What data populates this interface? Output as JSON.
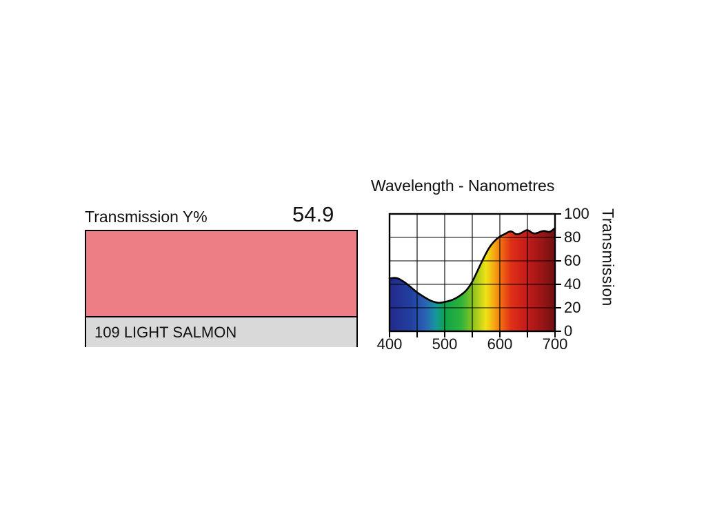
{
  "swatch": {
    "transmission_label": "Transmission Y%",
    "transmission_value": "54.9",
    "name_label": "109 LIGHT SALMON",
    "fill_color": "#ee7e85",
    "strip_color": "#d9d9da"
  },
  "chart_data": {
    "type": "area",
    "title": "Wavelength - Nanometres",
    "ylabel": "Transmission",
    "xlabel": "",
    "xlim": [
      400,
      700
    ],
    "ylim": [
      0,
      100
    ],
    "grid": true,
    "grid_step_x_nm": 50,
    "grid_step_y": 20,
    "legend": "none",
    "x_tick_labels": [
      "400",
      "500",
      "600",
      "700"
    ],
    "y_tick_labels": [
      "100",
      "80",
      "60",
      "40",
      "20",
      "0"
    ],
    "x": [
      400,
      410,
      420,
      430,
      440,
      450,
      460,
      470,
      480,
      490,
      500,
      510,
      520,
      530,
      540,
      550,
      560,
      570,
      580,
      590,
      600,
      610,
      620,
      630,
      640,
      650,
      660,
      670,
      680,
      690,
      700
    ],
    "values": [
      45,
      46,
      44,
      41,
      37,
      33,
      30,
      27,
      25,
      24,
      25,
      26,
      28,
      31,
      35,
      42,
      52,
      62,
      71,
      77,
      81,
      83,
      86,
      82,
      84,
      87,
      83,
      84,
      86,
      84,
      88
    ],
    "curve_color": "#000000",
    "grid_color": "#000000",
    "spectrum_stops": [
      {
        "offset": 0.0,
        "color": "#232a8c"
      },
      {
        "offset": 0.133,
        "color": "#21409f"
      },
      {
        "offset": 0.217,
        "color": "#2b63b5"
      },
      {
        "offset": 0.283,
        "color": "#14999b"
      },
      {
        "offset": 0.333,
        "color": "#0fa24b"
      },
      {
        "offset": 0.433,
        "color": "#2eb33a"
      },
      {
        "offset": 0.517,
        "color": "#9cc71e"
      },
      {
        "offset": 0.583,
        "color": "#f0e214"
      },
      {
        "offset": 0.633,
        "color": "#f5a713"
      },
      {
        "offset": 0.683,
        "color": "#ee6414"
      },
      {
        "offset": 0.733,
        "color": "#e03117"
      },
      {
        "offset": 0.817,
        "color": "#c81d1a"
      },
      {
        "offset": 0.9,
        "color": "#a31717"
      },
      {
        "offset": 1.0,
        "color": "#701111"
      }
    ]
  }
}
